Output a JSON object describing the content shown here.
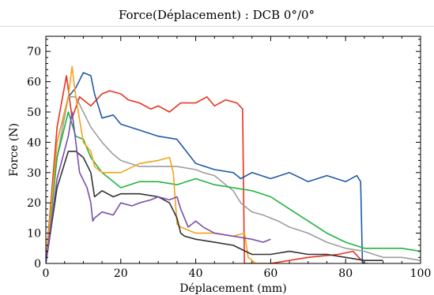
{
  "chart_data": {
    "type": "line",
    "title": "Force(Déplacement) : DCB 0°/0°",
    "xlabel": "Déplacement (mm)",
    "ylabel": "Force (N)",
    "xlim": [
      0,
      100
    ],
    "ylim": [
      0,
      75
    ],
    "xticks": [
      0,
      20,
      40,
      60,
      80,
      100
    ],
    "yticks": [
      0,
      10,
      20,
      30,
      40,
      50,
      60,
      70
    ],
    "grid": false,
    "legend": "none",
    "series": [
      {
        "color": "#e8321e",
        "x": [
          0,
          3,
          5.5,
          7,
          9,
          12,
          15,
          17,
          20,
          22,
          25,
          28,
          30,
          33,
          36,
          40,
          43,
          45,
          48,
          51,
          52.5,
          53,
          53.5,
          55,
          60,
          70,
          78,
          82,
          85
        ],
        "y": [
          0,
          45,
          62,
          48,
          55,
          52,
          56,
          57,
          56,
          54,
          53,
          51,
          52,
          50,
          53,
          53,
          55,
          52,
          54,
          53,
          51,
          0,
          0,
          0,
          0,
          2,
          3,
          4,
          0
        ]
      },
      {
        "color": "#1f5aa6",
        "x": [
          0,
          3,
          6,
          8,
          10,
          12,
          13,
          15,
          18,
          20,
          25,
          30,
          35,
          40,
          45,
          50,
          52,
          55,
          60,
          65,
          70,
          75,
          80,
          83,
          84,
          84.5,
          86
        ],
        "y": [
          0,
          40,
          55,
          58,
          63,
          62,
          56,
          48,
          49,
          46,
          44,
          42,
          41,
          33,
          31,
          30,
          28,
          30,
          28,
          30,
          27,
          29,
          27,
          29,
          27,
          0,
          0
        ]
      },
      {
        "color": "#9e9e9e",
        "x": [
          0,
          3,
          6,
          8,
          10,
          12,
          15,
          18,
          20,
          25,
          30,
          35,
          40,
          42,
          45,
          48,
          50,
          52,
          55,
          58,
          62,
          65,
          70,
          75,
          80,
          85,
          90,
          95,
          100
        ],
        "y": [
          0,
          35,
          55,
          55,
          50,
          45,
          40,
          36,
          34,
          32,
          32,
          32,
          31,
          30,
          29,
          26,
          24,
          20,
          17,
          16,
          14,
          12,
          10,
          7,
          5,
          4,
          2,
          2,
          1
        ]
      },
      {
        "color": "#22b33d",
        "x": [
          0,
          3,
          6,
          8,
          10,
          12,
          15,
          18,
          20,
          25,
          30,
          35,
          40,
          45,
          50,
          55,
          60,
          65,
          70,
          75,
          80,
          85,
          90,
          95,
          100
        ],
        "y": [
          0,
          35,
          50,
          42,
          41,
          35,
          30,
          27,
          25,
          27,
          27,
          26,
          28,
          26,
          25,
          24,
          22,
          18,
          14,
          10,
          7,
          5,
          5,
          5,
          4
        ]
      },
      {
        "color": "#f5a21b",
        "x": [
          0,
          3,
          6,
          7,
          7.5,
          8,
          10,
          12,
          13,
          15,
          18,
          20,
          25,
          30,
          33,
          34,
          35,
          36,
          38,
          40,
          45,
          50,
          53,
          54,
          56
        ],
        "y": [
          0,
          40,
          55,
          65,
          60,
          55,
          40,
          37,
          32,
          30,
          30,
          30,
          33,
          34,
          35,
          30,
          13,
          12,
          11,
          10,
          10,
          9,
          10,
          2,
          0
        ]
      },
      {
        "color": "#333333",
        "x": [
          0,
          3,
          6,
          8,
          10,
          12,
          13,
          15,
          18,
          20,
          25,
          30,
          33,
          35,
          36,
          37,
          40,
          45,
          50,
          55,
          60,
          65,
          70,
          75,
          80,
          85,
          90
        ],
        "y": [
          0,
          25,
          37,
          37,
          35,
          30,
          22,
          24,
          22,
          23,
          23,
          22,
          20,
          15,
          10,
          9,
          8,
          7,
          6,
          3,
          3,
          4,
          3,
          3,
          2,
          1,
          1
        ]
      },
      {
        "color": "#7a4fa8",
        "x": [
          0,
          3,
          6,
          7,
          9,
          11,
          12,
          12.5,
          13,
          15,
          18,
          20,
          23,
          25,
          28,
          30,
          33,
          35,
          36,
          38,
          40,
          42,
          45,
          50,
          55,
          58,
          60
        ],
        "y": [
          0,
          28,
          42,
          50,
          30,
          25,
          20,
          14,
          15,
          17,
          16,
          20,
          19,
          20,
          21,
          22,
          21,
          22,
          18,
          12,
          14,
          12,
          10,
          9,
          8,
          7,
          8
        ]
      }
    ]
  }
}
